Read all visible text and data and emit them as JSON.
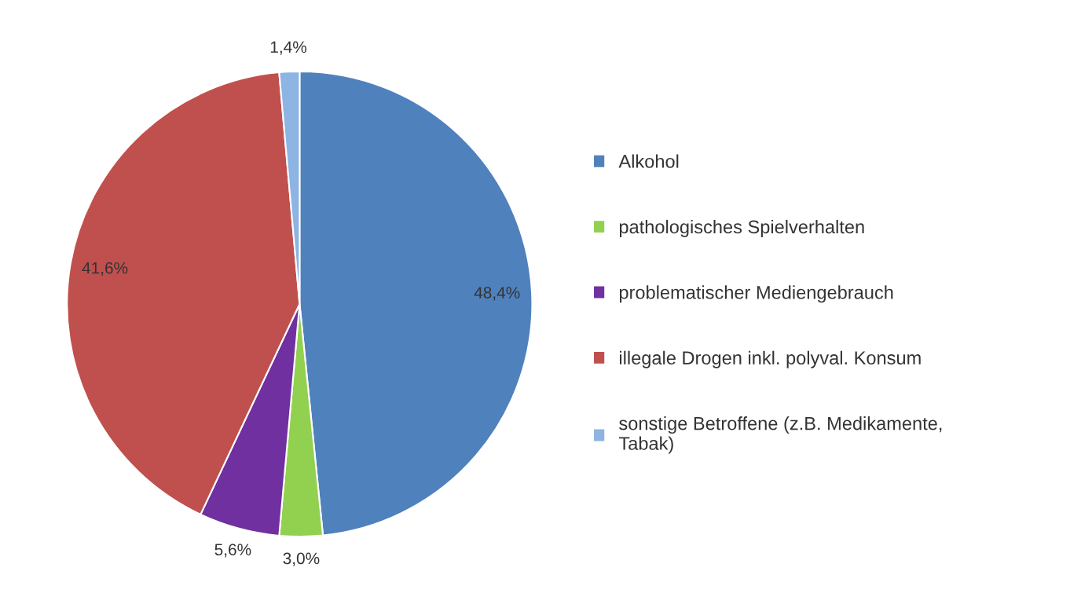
{
  "chart_data": {
    "type": "pie",
    "categories": [
      "Alkohol",
      "pathologisches Spielverhalten",
      "problematischer Mediengebrauch",
      "illegale Drogen inkl. polyval. Konsum",
      "sonstige Betroffene (z.B. Medikamente,\nTabak)"
    ],
    "values": [
      48.4,
      3.0,
      5.6,
      41.6,
      1.4
    ],
    "colors": [
      "#4f81bd",
      "#92d050",
      "#7030a0",
      "#c0504d",
      "#8db4e2"
    ],
    "value_labels": [
      "48,4%",
      "3,0%",
      "5,6%",
      "41,6%",
      "1,4%"
    ],
    "legend": "right"
  }
}
